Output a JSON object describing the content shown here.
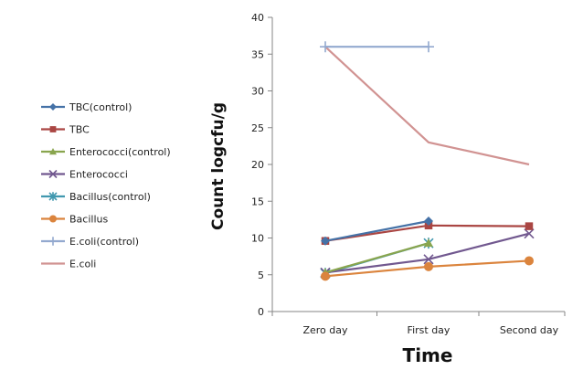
{
  "chart_data": {
    "type": "line",
    "categories": [
      "Zero day",
      "First day",
      "Second day"
    ],
    "xlabel": "Time",
    "ylabel": "Count logcfu/g",
    "ylim": [
      0,
      40
    ],
    "yticks": [
      0,
      5,
      10,
      15,
      20,
      25,
      30,
      35,
      40
    ],
    "grid": false,
    "legend_position": "left",
    "series": [
      {
        "name": "TBC(control)",
        "color": "#4572A7",
        "marker": "diamond",
        "values": [
          9.6,
          12.3,
          null
        ]
      },
      {
        "name": "TBC",
        "color": "#AA4643",
        "marker": "square",
        "values": [
          9.6,
          11.7,
          11.6
        ]
      },
      {
        "name": "Enterococci(control)",
        "color": "#89A54E",
        "marker": "triangle",
        "values": [
          5.3,
          9.3,
          null
        ]
      },
      {
        "name": "Enterococci",
        "color": "#71588F",
        "marker": "x",
        "values": [
          5.3,
          7.1,
          10.6
        ]
      },
      {
        "name": "Bacillus(control)",
        "color": "#4198AF",
        "marker": "star",
        "values": [
          5.2,
          9.3,
          null
        ]
      },
      {
        "name": "Bacillus",
        "color": "#DB843D",
        "marker": "circle",
        "values": [
          4.8,
          6.1,
          6.9
        ]
      },
      {
        "name": "E.coli(control)",
        "color": "#93A9CF",
        "marker": "plus",
        "values": [
          36,
          36,
          null
        ]
      },
      {
        "name": "E.coli",
        "color": "#D19392",
        "marker": "dash",
        "values": [
          36,
          23,
          20
        ]
      }
    ]
  }
}
